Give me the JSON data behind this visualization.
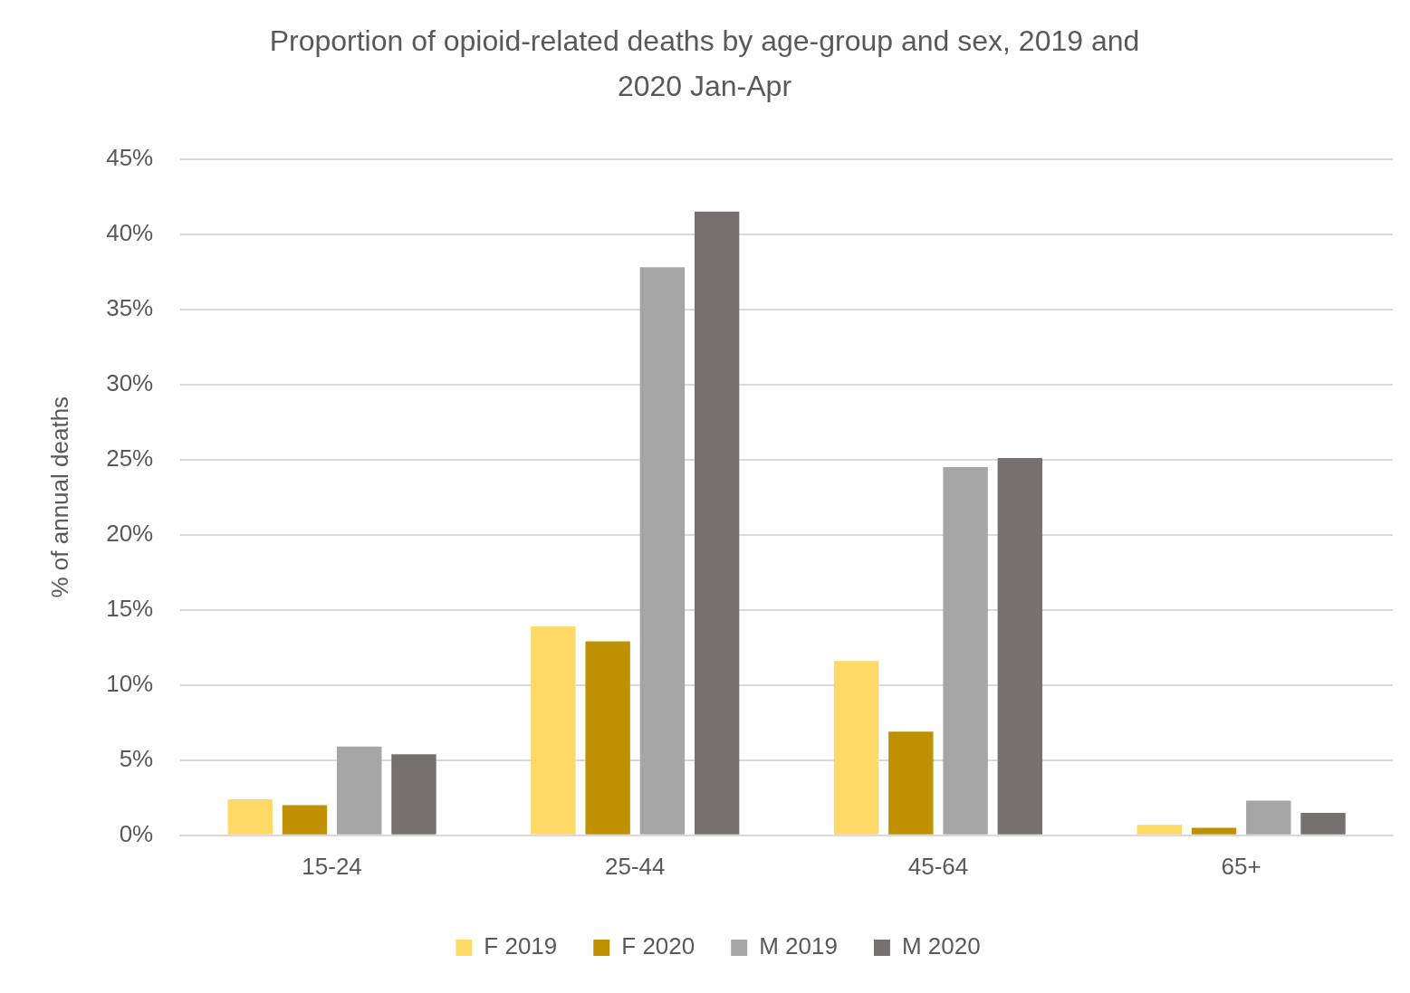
{
  "chart_data": {
    "type": "bar",
    "title": "Proportion of opioid-related deaths by age-group and sex, 2019 and 2020 Jan-Apr",
    "ylabel": "% of annual deaths",
    "categories": [
      "15-24",
      "25-44",
      "45-64",
      "65+"
    ],
    "series": [
      {
        "name": "F 2019",
        "color": "#ffd966",
        "values": [
          2.4,
          13.9,
          11.6,
          0.7
        ]
      },
      {
        "name": "F 2020",
        "color": "#bf9000",
        "values": [
          2.0,
          12.9,
          6.9,
          0.5
        ]
      },
      {
        "name": "M 2019",
        "color": "#a5a5a5",
        "values": [
          5.9,
          37.8,
          24.5,
          2.3
        ]
      },
      {
        "name": "M 2020",
        "color": "#767171",
        "values": [
          5.4,
          41.5,
          25.1,
          1.5
        ]
      }
    ],
    "ylim": [
      0,
      45
    ],
    "yticks": [
      {
        "value": 0,
        "label": "0%"
      },
      {
        "value": 5,
        "label": "5%"
      },
      {
        "value": 10,
        "label": "10%"
      },
      {
        "value": 15,
        "label": "15%"
      },
      {
        "value": 20,
        "label": "20%"
      },
      {
        "value": 25,
        "label": "25%"
      },
      {
        "value": 30,
        "label": "30%"
      },
      {
        "value": 35,
        "label": "35%"
      },
      {
        "value": 40,
        "label": "40%"
      },
      {
        "value": 45,
        "label": "45%"
      }
    ],
    "grid": "y",
    "legend": "bottom"
  }
}
